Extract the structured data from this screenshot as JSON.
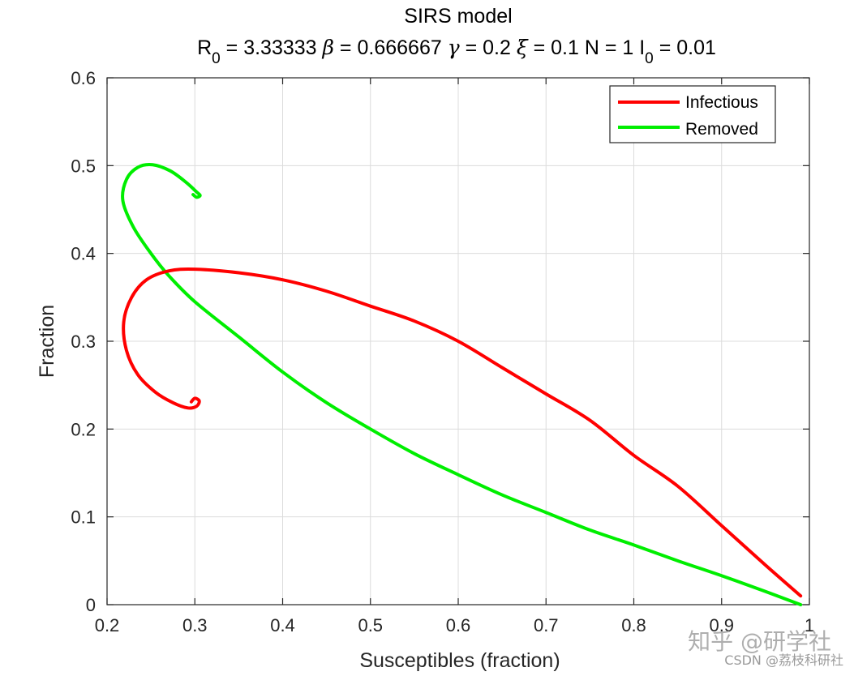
{
  "chart_data": {
    "type": "line",
    "title": "SIRS model",
    "subtitle_parts": [
      "R",
      "0",
      " = 3.33333  ",
      "β",
      " = 0.666667  ",
      "γ",
      " = 0.2   ",
      "ξ",
      " = 0.1  N = 1  I",
      "0",
      " = 0.01"
    ],
    "xlabel": "Susceptibles (fraction)",
    "ylabel": "Fraction",
    "xlim": [
      0.2,
      1
    ],
    "ylim": [
      0,
      0.6
    ],
    "xticks": [
      "0.2",
      "0.3",
      "0.4",
      "0.5",
      "0.6",
      "0.7",
      "0.8",
      "0.9",
      "1"
    ],
    "yticks": [
      "0",
      "0.1",
      "0.2",
      "0.3",
      "0.4",
      "0.5",
      "0.6"
    ],
    "grid": true,
    "legend_position": "top-right",
    "series": [
      {
        "name": "Infectious",
        "color": "#ff0000",
        "points": [
          [
            0.99,
            0.01
          ],
          [
            0.95,
            0.045
          ],
          [
            0.9,
            0.09
          ],
          [
            0.85,
            0.135
          ],
          [
            0.8,
            0.17
          ],
          [
            0.75,
            0.21
          ],
          [
            0.7,
            0.24
          ],
          [
            0.65,
            0.27
          ],
          [
            0.6,
            0.3
          ],
          [
            0.55,
            0.323
          ],
          [
            0.5,
            0.34
          ],
          [
            0.45,
            0.357
          ],
          [
            0.4,
            0.37
          ],
          [
            0.35,
            0.378
          ],
          [
            0.3,
            0.382
          ],
          [
            0.27,
            0.38
          ],
          [
            0.245,
            0.37
          ],
          [
            0.228,
            0.35
          ],
          [
            0.219,
            0.322
          ],
          [
            0.222,
            0.29
          ],
          [
            0.235,
            0.262
          ],
          [
            0.255,
            0.242
          ],
          [
            0.275,
            0.23
          ],
          [
            0.292,
            0.224
          ],
          [
            0.302,
            0.226
          ],
          [
            0.305,
            0.232
          ],
          [
            0.3,
            0.235
          ],
          [
            0.296,
            0.231
          ]
        ]
      },
      {
        "name": "Removed",
        "color": "#00ee00",
        "points": [
          [
            0.99,
            0.0
          ],
          [
            0.95,
            0.015
          ],
          [
            0.9,
            0.033
          ],
          [
            0.85,
            0.05
          ],
          [
            0.8,
            0.068
          ],
          [
            0.75,
            0.085
          ],
          [
            0.7,
            0.105
          ],
          [
            0.65,
            0.125
          ],
          [
            0.6,
            0.148
          ],
          [
            0.55,
            0.172
          ],
          [
            0.5,
            0.2
          ],
          [
            0.45,
            0.23
          ],
          [
            0.4,
            0.265
          ],
          [
            0.35,
            0.305
          ],
          [
            0.3,
            0.345
          ],
          [
            0.27,
            0.375
          ],
          [
            0.25,
            0.4
          ],
          [
            0.23,
            0.43
          ],
          [
            0.218,
            0.46
          ],
          [
            0.222,
            0.484
          ],
          [
            0.235,
            0.498
          ],
          [
            0.252,
            0.501
          ],
          [
            0.272,
            0.494
          ],
          [
            0.29,
            0.481
          ],
          [
            0.302,
            0.47
          ],
          [
            0.306,
            0.466
          ],
          [
            0.302,
            0.464
          ],
          [
            0.298,
            0.467
          ]
        ]
      }
    ]
  },
  "watermark": {
    "main": "知乎 @研学社",
    "sub": "CSDN @荔枝科研社"
  }
}
